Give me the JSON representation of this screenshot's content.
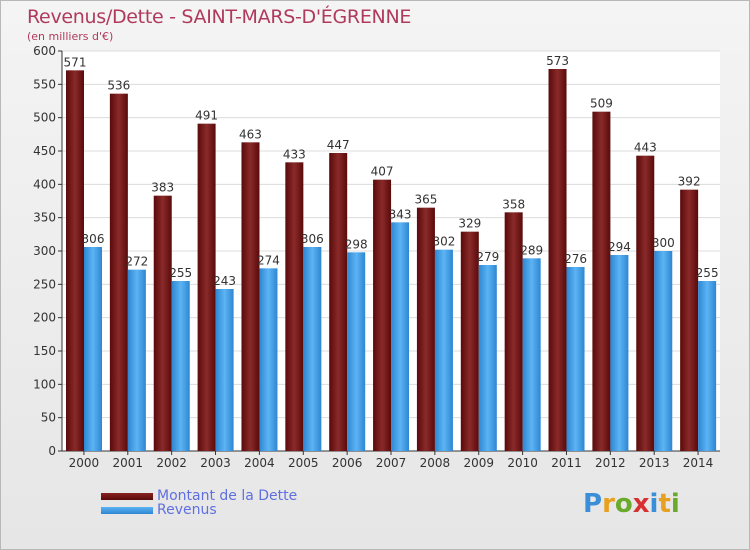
{
  "chart_data": {
    "type": "bar",
    "title": "Revenus/Dette - SAINT-MARS-D'ÉGRENNE",
    "subtitle": "(en milliers d'€)",
    "categories": [
      "2000",
      "2001",
      "2002",
      "2003",
      "2004",
      "2005",
      "2006",
      "2007",
      "2008",
      "2009",
      "2010",
      "2011",
      "2012",
      "2013",
      "2014"
    ],
    "series": [
      {
        "name": "Montant de la Dette",
        "values": [
          571,
          536,
          383,
          491,
          463,
          433,
          447,
          407,
          365,
          329,
          358,
          573,
          509,
          443,
          392
        ],
        "color": "#7a1818"
      },
      {
        "name": "Revenus",
        "values": [
          306,
          272,
          255,
          243,
          274,
          306,
          298,
          343,
          302,
          279,
          289,
          276,
          294,
          300,
          255
        ],
        "color": "#3e9be6"
      }
    ],
    "ylim": [
      0,
      600
    ],
    "yticks": [
      0,
      50,
      100,
      150,
      200,
      250,
      300,
      350,
      400,
      450,
      500,
      550,
      600
    ],
    "grid": true,
    "legend_position": "bottom-left"
  },
  "logo": {
    "letters": [
      {
        "ch": "P",
        "color": "#3a8fd8"
      },
      {
        "ch": "r",
        "color": "#e8a020"
      },
      {
        "ch": "o",
        "color": "#6aaa2a"
      },
      {
        "ch": "x",
        "color": "#d83030"
      },
      {
        "ch": "i",
        "color": "#3a8fd8"
      },
      {
        "ch": "t",
        "color": "#e8a020"
      },
      {
        "ch": "i",
        "color": "#6aaa2a"
      }
    ]
  }
}
